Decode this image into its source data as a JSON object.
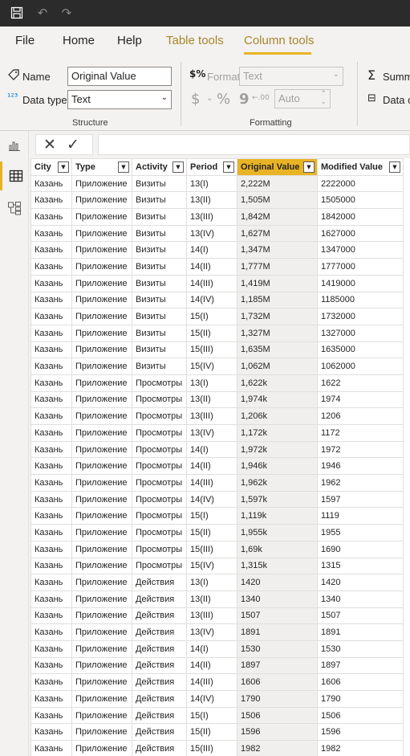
{
  "titlebar": {
    "save_icon": "save-icon",
    "undo_icon": "undo-icon",
    "redo_icon": "redo-icon"
  },
  "menu": {
    "file": "File",
    "home": "Home",
    "help": "Help",
    "table_tools": "Table tools",
    "column_tools": "Column tools"
  },
  "ribbon": {
    "name_label": "Name",
    "name_value": "Original Value",
    "datatype_label": "Data type",
    "datatype_value": "Text",
    "structure_label": "Structure",
    "format_label": "Format",
    "format_value": "Text",
    "currency_symbol": "$",
    "percent_symbol": "%",
    "comma_symbol": "9",
    "decimal_symbol": "←.00",
    "auto_value": "Auto",
    "formatting_label": "Formatting",
    "summarization_label": "Summ",
    "datacategory_label": "Data c"
  },
  "table": {
    "columns": [
      "City",
      "Type",
      "Activity",
      "Period",
      "Original Value",
      "Modified Value"
    ],
    "selected_column": "Original Value",
    "rows": [
      [
        "Казань",
        "Приложение",
        "Визиты",
        "13(I)",
        "2,222M",
        "2222000"
      ],
      [
        "Казань",
        "Приложение",
        "Визиты",
        "13(II)",
        "1,505M",
        "1505000"
      ],
      [
        "Казань",
        "Приложение",
        "Визиты",
        "13(III)",
        "1,842M",
        "1842000"
      ],
      [
        "Казань",
        "Приложение",
        "Визиты",
        "13(IV)",
        "1,627M",
        "1627000"
      ],
      [
        "Казань",
        "Приложение",
        "Визиты",
        "14(I)",
        "1,347M",
        "1347000"
      ],
      [
        "Казань",
        "Приложение",
        "Визиты",
        "14(II)",
        "1,777M",
        "1777000"
      ],
      [
        "Казань",
        "Приложение",
        "Визиты",
        "14(III)",
        "1,419M",
        "1419000"
      ],
      [
        "Казань",
        "Приложение",
        "Визиты",
        "14(IV)",
        "1,185M",
        "1185000"
      ],
      [
        "Казань",
        "Приложение",
        "Визиты",
        "15(I)",
        "1,732M",
        "1732000"
      ],
      [
        "Казань",
        "Приложение",
        "Визиты",
        "15(II)",
        "1,327M",
        "1327000"
      ],
      [
        "Казань",
        "Приложение",
        "Визиты",
        "15(III)",
        "1,635M",
        "1635000"
      ],
      [
        "Казань",
        "Приложение",
        "Визиты",
        "15(IV)",
        "1,062M",
        "1062000"
      ],
      [
        "Казань",
        "Приложение",
        "Просмотры",
        "13(I)",
        "1,622k",
        "1622"
      ],
      [
        "Казань",
        "Приложение",
        "Просмотры",
        "13(II)",
        "1,974k",
        "1974"
      ],
      [
        "Казань",
        "Приложение",
        "Просмотры",
        "13(III)",
        "1,206k",
        "1206"
      ],
      [
        "Казань",
        "Приложение",
        "Просмотры",
        "13(IV)",
        "1,172k",
        "1172"
      ],
      [
        "Казань",
        "Приложение",
        "Просмотры",
        "14(I)",
        "1,972k",
        "1972"
      ],
      [
        "Казань",
        "Приложение",
        "Просмотры",
        "14(II)",
        "1,946k",
        "1946"
      ],
      [
        "Казань",
        "Приложение",
        "Просмотры",
        "14(III)",
        "1,962k",
        "1962"
      ],
      [
        "Казань",
        "Приложение",
        "Просмотры",
        "14(IV)",
        "1,597k",
        "1597"
      ],
      [
        "Казань",
        "Приложение",
        "Просмотры",
        "15(I)",
        "1,119k",
        "1119"
      ],
      [
        "Казань",
        "Приложение",
        "Просмотры",
        "15(II)",
        "1,955k",
        "1955"
      ],
      [
        "Казань",
        "Приложение",
        "Просмотры",
        "15(III)",
        "1,69k",
        "1690"
      ],
      [
        "Казань",
        "Приложение",
        "Просмотры",
        "15(IV)",
        "1,315k",
        "1315"
      ],
      [
        "Казань",
        "Приложение",
        "Действия",
        "13(I)",
        "1420",
        "1420"
      ],
      [
        "Казань",
        "Приложение",
        "Действия",
        "13(II)",
        "1340",
        "1340"
      ],
      [
        "Казань",
        "Приложение",
        "Действия",
        "13(III)",
        "1507",
        "1507"
      ],
      [
        "Казань",
        "Приложение",
        "Действия",
        "13(IV)",
        "1891",
        "1891"
      ],
      [
        "Казань",
        "Приложение",
        "Действия",
        "14(I)",
        "1530",
        "1530"
      ],
      [
        "Казань",
        "Приложение",
        "Действия",
        "14(II)",
        "1897",
        "1897"
      ],
      [
        "Казань",
        "Приложение",
        "Действия",
        "14(III)",
        "1606",
        "1606"
      ],
      [
        "Казань",
        "Приложение",
        "Действия",
        "14(IV)",
        "1790",
        "1790"
      ],
      [
        "Казань",
        "Приложение",
        "Действия",
        "15(I)",
        "1506",
        "1506"
      ],
      [
        "Казань",
        "Приложение",
        "Действия",
        "15(II)",
        "1596",
        "1596"
      ],
      [
        "Казань",
        "Приложение",
        "Действия",
        "15(III)",
        "1982",
        "1982"
      ]
    ]
  },
  "colors": {
    "accent": "#e8b325",
    "context_tab": "#a9852a",
    "titlebar": "#2b2b2b"
  }
}
